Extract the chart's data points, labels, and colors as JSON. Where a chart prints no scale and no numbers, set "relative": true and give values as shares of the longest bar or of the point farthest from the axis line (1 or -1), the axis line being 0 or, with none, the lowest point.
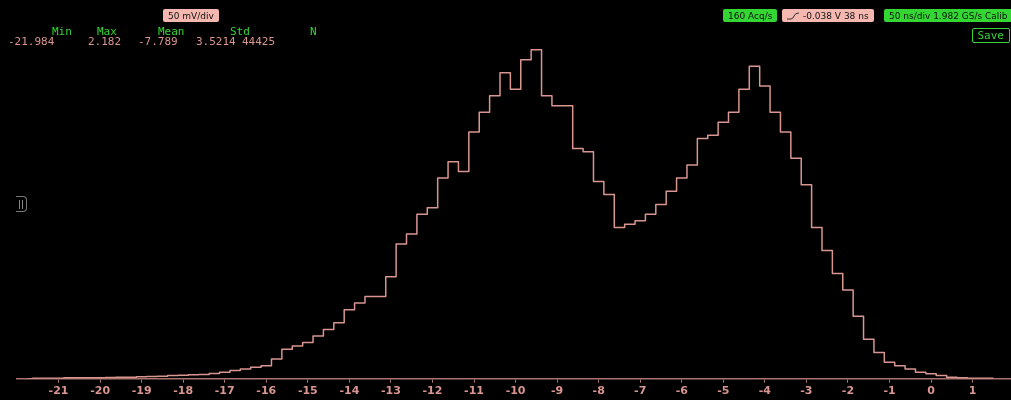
{
  "chart_data": {
    "type": "step",
    "relative": true,
    "x": [
      -21.75,
      -21.5,
      -21.25,
      -21,
      -20.75,
      -20.5,
      -20.25,
      -20,
      -19.75,
      -19.5,
      -19.25,
      -19,
      -18.75,
      -18.5,
      -18.25,
      -18,
      -17.75,
      -17.5,
      -17.25,
      -17,
      -16.75,
      -16.5,
      -16.25,
      -16,
      -15.75,
      -15.5,
      -15.25,
      -15,
      -14.75,
      -14.5,
      -14.25,
      -14,
      -13.75,
      -13.5,
      -13.25,
      -13,
      -12.75,
      -12.5,
      -12.25,
      -12,
      -11.75,
      -11.5,
      -11.25,
      -11,
      -10.75,
      -10.5,
      -10.25,
      -10,
      -9.75,
      -9.5,
      -9.25,
      -9,
      -8.75,
      -8.5,
      -8.25,
      -8,
      -7.75,
      -7.5,
      -7.25,
      -7,
      -6.75,
      -6.5,
      -6.25,
      -6,
      -5.75,
      -5.5,
      -5.25,
      -5,
      -4.75,
      -4.5,
      -4.25,
      -4,
      -3.75,
      -3.5,
      -3.25,
      -3,
      -2.75,
      -2.5,
      -2.25,
      -2,
      -1.75,
      -1.5,
      -1.25,
      -1,
      -0.75,
      -0.5,
      -0.25,
      0,
      0.25,
      0.5,
      0.75,
      1,
      1.25,
      1.5
    ],
    "values": [
      0,
      0.002,
      0.002,
      0.002,
      0.003,
      0.003,
      0.003,
      0.003,
      0.004,
      0.005,
      0.005,
      0.006,
      0.007,
      0.008,
      0.01,
      0.011,
      0.012,
      0.013,
      0.016,
      0.02,
      0.025,
      0.03,
      0.035,
      0.04,
      0.06,
      0.09,
      0.1,
      0.11,
      0.13,
      0.15,
      0.17,
      0.21,
      0.23,
      0.25,
      0.25,
      0.31,
      0.41,
      0.44,
      0.5,
      0.52,
      0.61,
      0.66,
      0.63,
      0.75,
      0.81,
      0.86,
      0.93,
      0.88,
      0.97,
      1,
      0.86,
      0.83,
      0.83,
      0.7,
      0.69,
      0.6,
      0.56,
      0.46,
      0.47,
      0.48,
      0.5,
      0.53,
      0.57,
      0.61,
      0.65,
      0.73,
      0.74,
      0.78,
      0.81,
      0.88,
      0.95,
      0.89,
      0.81,
      0.75,
      0.67,
      0.59,
      0.46,
      0.39,
      0.32,
      0.27,
      0.19,
      0.12,
      0.08,
      0.05,
      0.04,
      0.03,
      0.02,
      0.015,
      0.01,
      0.005,
      0.003,
      0.002,
      0.002,
      0.002
    ],
    "color": "#d9958f",
    "xlim": [
      -22,
      1.9
    ],
    "xticks": [
      -21,
      -20,
      -19,
      -18,
      -17,
      -16,
      -15,
      -14,
      -13,
      -12,
      -11,
      -10,
      -9,
      -8,
      -7,
      -6,
      -5,
      -4,
      -3,
      -2,
      -1,
      0,
      1
    ],
    "grid": false,
    "legend": false,
    "annotations": [
      "50 mV/div",
      "160 Acq/s",
      "-0.038 V 38 ns",
      "50 ns/div 1.982 GS/s Calib",
      "Save",
      "Min",
      "Max",
      "Mean",
      "Std",
      "N",
      "-21.984",
      "2.182",
      "-7.789",
      "3.5214",
      "44425"
    ]
  }
}
